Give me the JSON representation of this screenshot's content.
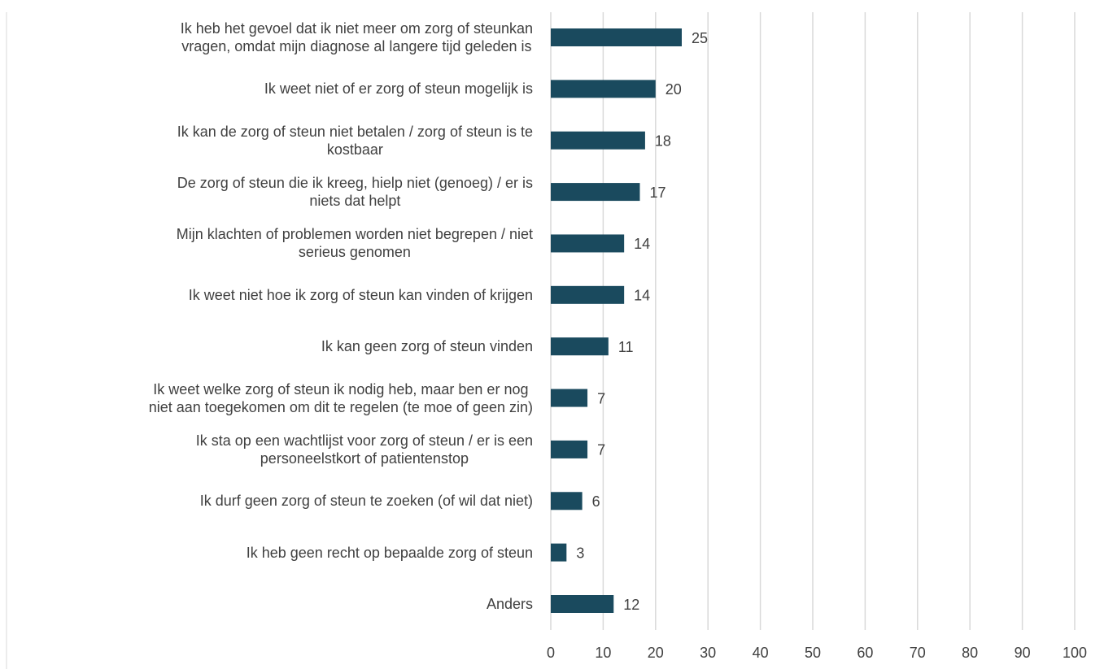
{
  "chart_data": {
    "type": "bar",
    "orientation": "horizontal",
    "categories": [
      "Ik heb het gevoel dat ik niet meer om zorg of steunkan\nvragen, omdat mijn diagnose al langere tijd geleden is",
      "Ik weet niet of er zorg of steun mogelijk is",
      "Ik kan de zorg of steun niet betalen / zorg of steun is te\nkostbaar",
      "De zorg of steun die ik kreeg, hielp niet (genoeg) / er is\nniets dat helpt",
      "Mijn klachten of problemen worden niet begrepen / niet\nserieus genomen",
      "Ik weet niet hoe ik zorg of steun kan vinden of krijgen",
      "Ik kan geen zorg of steun vinden",
      "Ik weet welke zorg of steun ik nodig heb, maar ben er nog\nniet aan toegekomen om dit te regelen (te moe of geen zin)",
      "Ik sta op een wachtlijst voor zorg of steun / er is een\npersoneelstkort of patientenstop",
      "Ik durf geen zorg of steun te zoeken (of wil dat niet)",
      "Ik heb geen recht op bepaalde zorg of steun",
      "Anders"
    ],
    "values": [
      25,
      20,
      18,
      17,
      14,
      14,
      11,
      7,
      7,
      6,
      3,
      12
    ],
    "color": "#1a4a5e",
    "xlim": [
      0,
      100
    ],
    "xticks": [
      0,
      10,
      20,
      30,
      40,
      50,
      60,
      70,
      80,
      90,
      100
    ],
    "grid": true
  }
}
